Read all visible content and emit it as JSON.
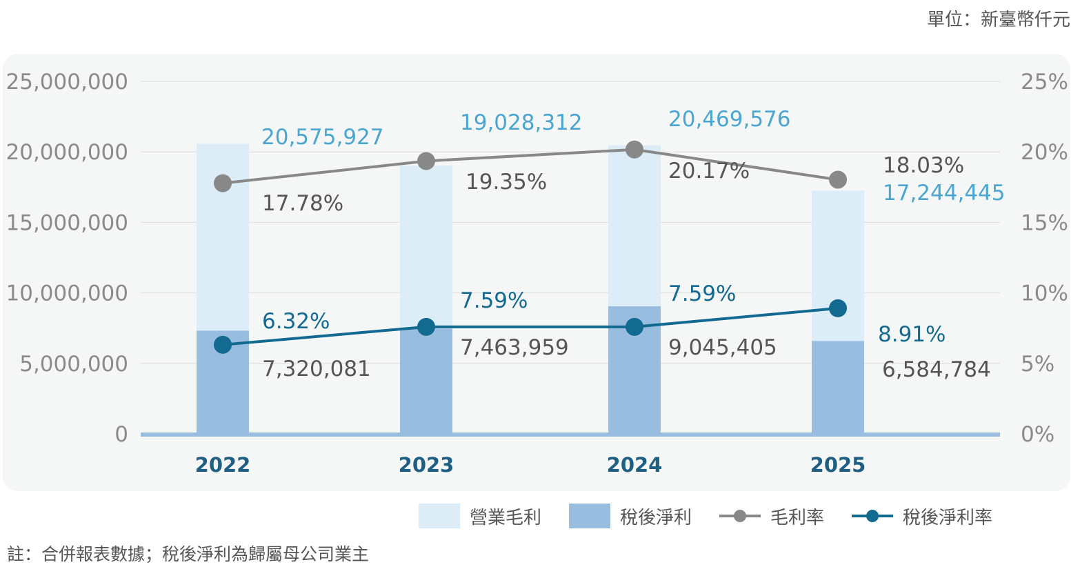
{
  "unit_label": "單位：新臺幣仟元",
  "note": "註：合併報表數據；稅後淨利為歸屬母公司業主",
  "colors": {
    "gross_profit": "#dcedf8",
    "net_income": "#98bddf",
    "gross_margin": "#888888",
    "net_margin": "#126a91",
    "gross_label": "#4aa6d0",
    "axis_text": "#8a8a8a",
    "year_text": "#1f5f84",
    "baseline": "#98bddf"
  },
  "legend": {
    "gross_profit": "營業毛利",
    "net_income": "稅後淨利",
    "gross_margin": "毛利率",
    "net_margin": "稅後淨利率"
  },
  "chart_data": {
    "type": "bar",
    "title": "",
    "categories": [
      "2022",
      "2023",
      "2024",
      "2025"
    ],
    "series": [
      {
        "name": "營業毛利",
        "type": "bar",
        "axis": "left",
        "values": [
          20575927,
          19028312,
          20469576,
          17244445
        ]
      },
      {
        "name": "稅後淨利",
        "type": "bar",
        "axis": "left",
        "values": [
          7320081,
          7463959,
          9045405,
          6584784
        ]
      },
      {
        "name": "毛利率",
        "type": "line",
        "axis": "right",
        "values": [
          17.78,
          19.35,
          20.17,
          18.03
        ]
      },
      {
        "name": "稅後淨利率",
        "type": "line",
        "axis": "right",
        "values": [
          6.32,
          7.59,
          7.59,
          8.91
        ]
      }
    ],
    "data_labels": {
      "gross_profit": [
        "20,575,927",
        "19,028,312",
        "20,469,576",
        "17,244,445"
      ],
      "net_income": [
        "7,320,081",
        "7,463,959",
        "9,045,405",
        "6,584,784"
      ],
      "gross_margin": [
        "17.78%",
        "19.35%",
        "20.17%",
        "18.03%"
      ],
      "net_margin": [
        "6.32%",
        "7.59%",
        "7.59%",
        "8.91%"
      ]
    },
    "y_left": {
      "range": [
        0,
        25000000
      ],
      "ticks": [
        "0",
        "5,000,000",
        "10,000,000",
        "15,000,000",
        "20,000,000",
        "25,000,000"
      ]
    },
    "y_right": {
      "range": [
        0,
        25
      ],
      "ticks": [
        "0%",
        "5%",
        "10%",
        "15%",
        "20%",
        "25%"
      ]
    },
    "grid": true,
    "legend_position": "bottom-right"
  }
}
